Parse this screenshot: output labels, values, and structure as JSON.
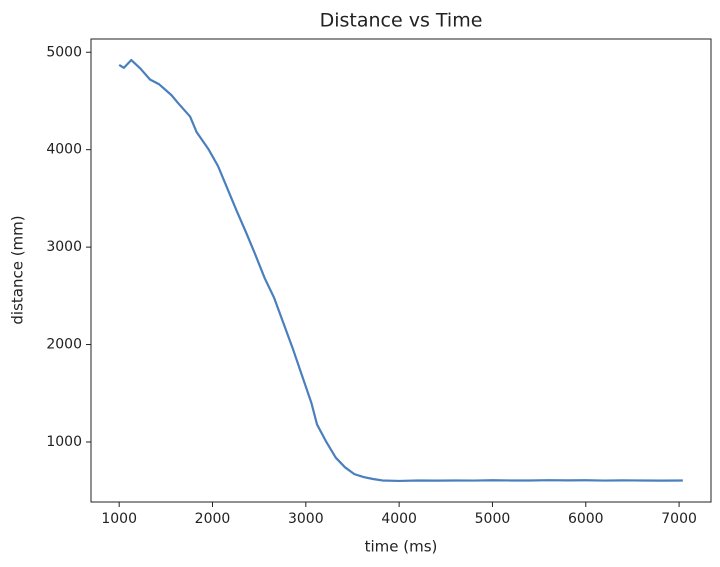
{
  "chart_data": {
    "type": "line",
    "title": "Distance vs Time",
    "xlabel": "time (ms)",
    "ylabel": "distance (mm)",
    "x": [
      1000,
      1050,
      1130,
      1230,
      1330,
      1430,
      1560,
      1630,
      1760,
      1830,
      1960,
      2060,
      2160,
      2260,
      2360,
      2460,
      2560,
      2660,
      2760,
      2860,
      2960,
      3060,
      3120,
      3220,
      3320,
      3420,
      3520,
      3620,
      3720,
      3820,
      4000,
      4200,
      4400,
      4600,
      4800,
      5000,
      5200,
      5400,
      5600,
      5800,
      6000,
      6200,
      6400,
      6600,
      6800,
      7040
    ],
    "values": [
      4870,
      4840,
      4920,
      4830,
      4720,
      4670,
      4560,
      4480,
      4340,
      4180,
      4000,
      3830,
      3600,
      3370,
      3150,
      2920,
      2680,
      2480,
      2220,
      1960,
      1680,
      1400,
      1180,
      1000,
      840,
      740,
      670,
      640,
      620,
      605,
      600,
      605,
      603,
      605,
      604,
      607,
      605,
      605,
      608,
      606,
      607,
      604,
      606,
      605,
      603,
      605
    ],
    "color": "#4a7fbd",
    "xlim": [
      698,
      7342
    ],
    "xticks": [
      1000,
      2000,
      3000,
      4000,
      5000,
      6000,
      7000
    ],
    "ylim": [
      384,
      5136
    ],
    "yticks": [
      1000,
      2000,
      3000,
      4000,
      5000
    ],
    "grid": false
  }
}
